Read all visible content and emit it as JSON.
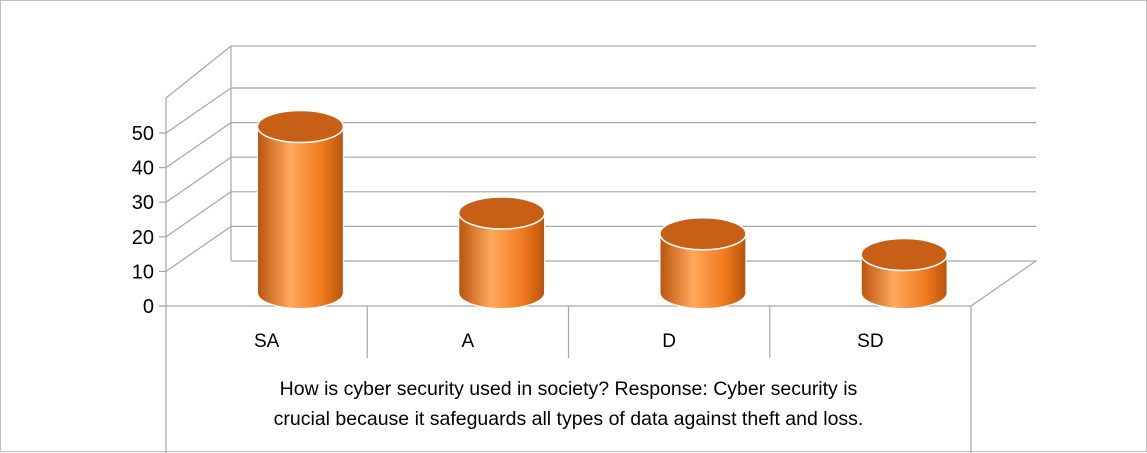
{
  "chart_data": {
    "type": "bar",
    "style": "3d-cylinder",
    "categories": [
      "SA",
      "A",
      "D",
      "SD"
    ],
    "series": [
      {
        "values": [
          48,
          23,
          17,
          11
        ]
      }
    ],
    "title": "",
    "xlabel": [
      "How is cyber security used in society? Response: Cyber security is",
      "crucial because it safeguards all types of data against theft and loss."
    ],
    "ylabel": "",
    "ylim": [
      0,
      50
    ],
    "yticks": [
      0,
      10,
      20,
      30,
      40,
      50
    ],
    "grid": true,
    "legend": "none",
    "colors": {
      "bar_body": "#f07a1e",
      "bar_highlight": "#ffa95c",
      "bar_shadow": "#b9540c",
      "bar_top": "#c85f16",
      "grid": "#a6a6a6",
      "frame": "#bfbfbf"
    }
  }
}
